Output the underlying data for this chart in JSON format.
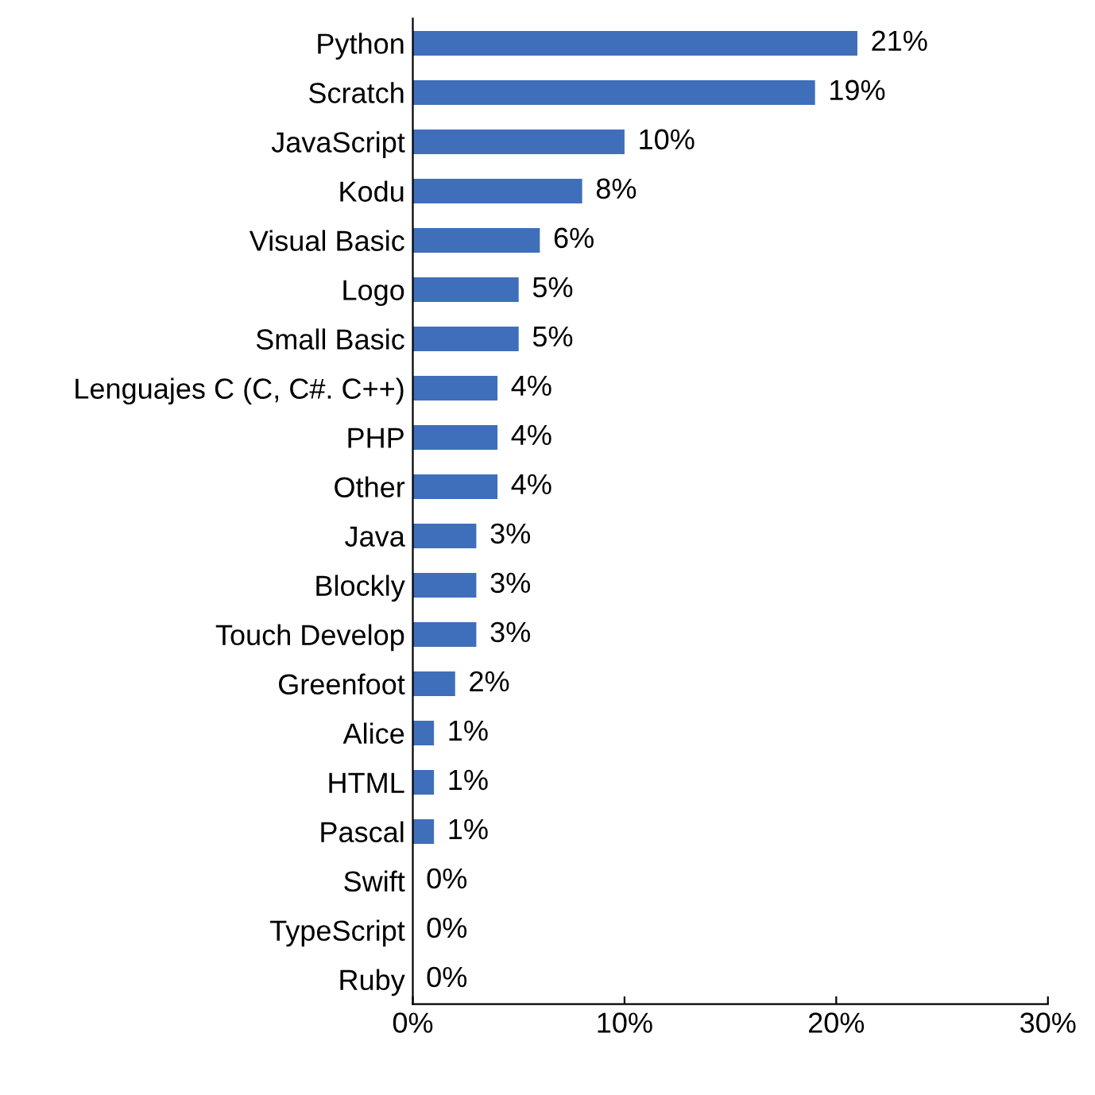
{
  "chart_data": {
    "type": "bar",
    "orientation": "horizontal",
    "categories": [
      "Python",
      "Scratch",
      "JavaScript",
      "Kodu",
      "Visual Basic",
      "Logo",
      "Small Basic",
      "Lenguajes C (C, C#. C++)",
      "PHP",
      "Other",
      "Java",
      "Blockly",
      "Touch Develop",
      "Greenfoot",
      "Alice",
      "HTML",
      "Pascal",
      "Swift",
      "TypeScript",
      "Ruby"
    ],
    "values": [
      21,
      19,
      10,
      8,
      6,
      5,
      5,
      4,
      4,
      4,
      3,
      3,
      3,
      2,
      1,
      1,
      1,
      0,
      0,
      0
    ],
    "value_labels": [
      "21%",
      "19%",
      "10%",
      "8%",
      "6%",
      "5%",
      "5%",
      "4%",
      "4%",
      "4%",
      "3%",
      "3%",
      "3%",
      "2%",
      "1%",
      "1%",
      "1%",
      "0%",
      "0%",
      "0%"
    ],
    "color": "#3f6fba",
    "xlim": [
      0,
      30
    ],
    "xticks": [
      {
        "value": 0,
        "label": "0%"
      },
      {
        "value": 10,
        "label": "10%"
      },
      {
        "value": 20,
        "label": "20%"
      },
      {
        "value": 30,
        "label": "30%"
      }
    ],
    "grid": false
  }
}
